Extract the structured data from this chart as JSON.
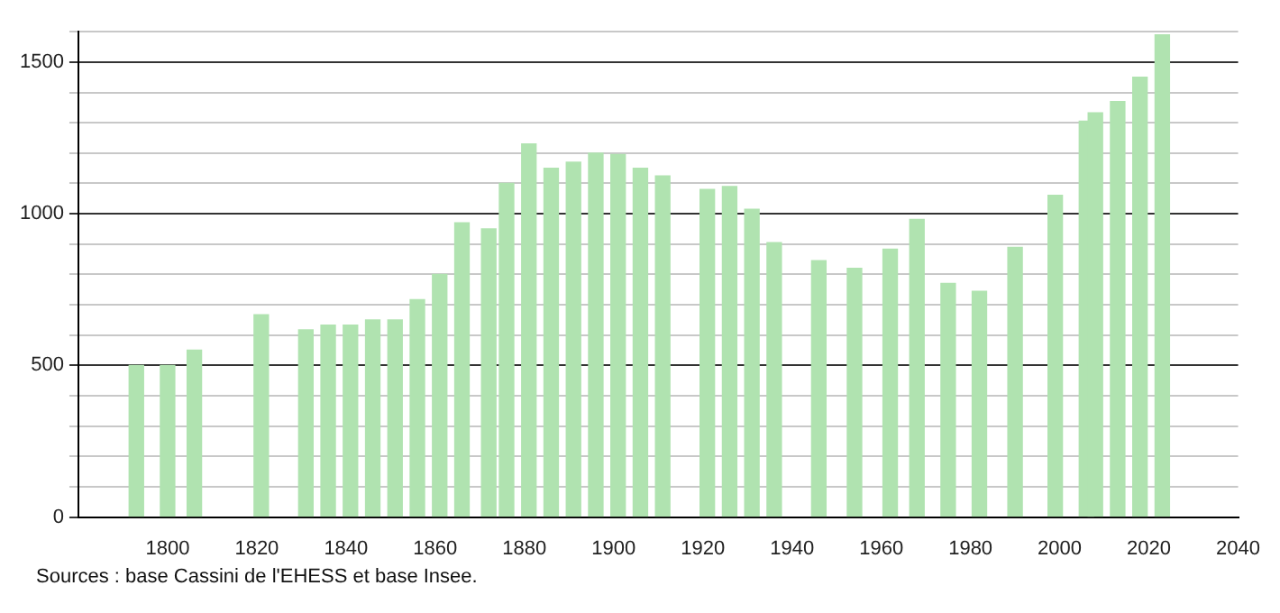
{
  "chart_data": {
    "type": "bar",
    "x": [
      1793,
      1800,
      1806,
      1821,
      1831,
      1836,
      1841,
      1846,
      1851,
      1856,
      1861,
      1866,
      1872,
      1876,
      1881,
      1886,
      1891,
      1896,
      1901,
      1906,
      1911,
      1921,
      1926,
      1931,
      1936,
      1946,
      1954,
      1962,
      1968,
      1975,
      1982,
      1990,
      1999,
      2006,
      2008,
      2013,
      2018,
      2023
    ],
    "values": [
      500,
      500,
      550,
      667,
      617,
      633,
      633,
      650,
      650,
      717,
      800,
      970,
      950,
      1100,
      1230,
      1150,
      1170,
      1200,
      1195,
      1150,
      1125,
      1080,
      1090,
      1015,
      905,
      845,
      820,
      883,
      981,
      770,
      744,
      889,
      1061,
      1305,
      1333,
      1370,
      1450,
      1590
    ],
    "color": "#b0e3b0",
    "xlim": [
      1780,
      2040
    ],
    "xticks": [
      1800,
      1820,
      1840,
      1860,
      1880,
      1900,
      1920,
      1940,
      1960,
      1980,
      2000,
      2020,
      2040
    ],
    "ylim": [
      0,
      1600
    ],
    "yticks": [
      0,
      {
        "value": 100,
        "label": null
      },
      {
        "value": 200,
        "label": null
      },
      {
        "value": 300,
        "label": null
      },
      {
        "value": 400,
        "label": null
      },
      500,
      {
        "value": 600,
        "label": null
      },
      {
        "value": 700,
        "label": null
      },
      {
        "value": 800,
        "label": null
      },
      {
        "value": 900,
        "label": null
      },
      1000,
      {
        "value": 1100,
        "label": null
      },
      {
        "value": 1200,
        "label": null
      },
      {
        "value": 1300,
        "label": null
      },
      {
        "value": 1400,
        "label": null
      },
      1500,
      {
        "value": 1600,
        "label": null
      }
    ],
    "grid": "y",
    "annotations": [
      "Sources : base Cassini de l'EHESS et base Insee."
    ]
  }
}
